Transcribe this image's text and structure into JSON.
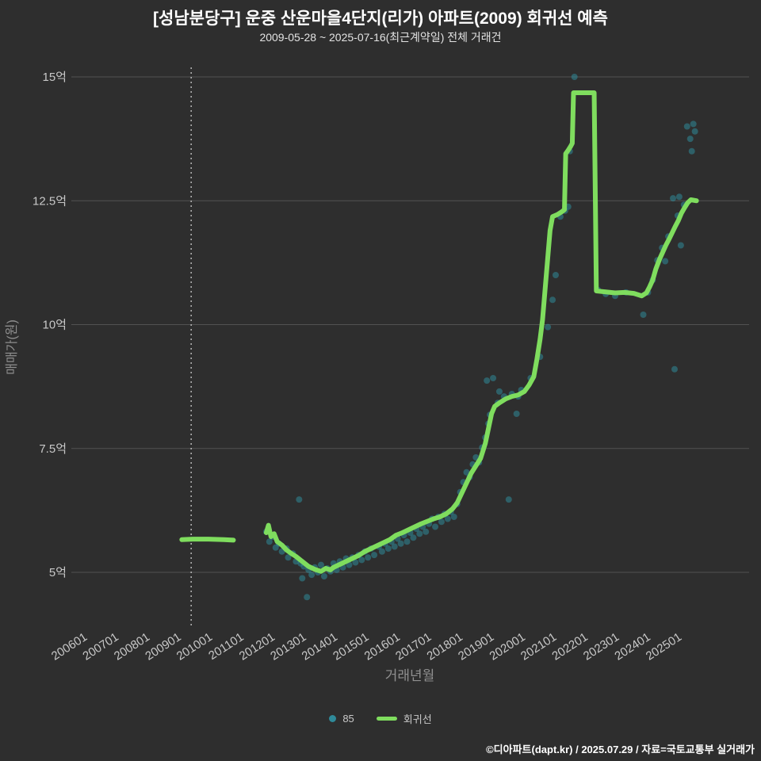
{
  "page": {
    "title": "[성남분당구] 운중 산운마을4단지(리가) 아파트(2009) 회귀선 예측",
    "subtitle": "2009-05-28 ~ 2025-07-16(최근계약일) 전체 거래건",
    "footer": "©디아파트(dapt.kr) / 2025.07.29 / 자료=국토교통부 실거래가"
  },
  "colors": {
    "background": "#2e2e2e",
    "grid": "#525252",
    "scatter": "#2f8a99",
    "line": "#7fdd5e",
    "tick": "#c8c8c8",
    "axis_title": "#8f8f8f",
    "vline": "#c0c0c0",
    "title": "#ffffff",
    "subtitle": "#e3e3e3"
  },
  "chart_data": {
    "type": "scatter",
    "title": "[성남분당구] 운중 산운마을4단지(리가) 아파트(2009) 회귀선 예측",
    "subtitle": "2009-05-28 ~ 2025-07-16(최근계약일) 전체 거래건",
    "xlabel": "거래년월",
    "ylabel": "매매가(원)",
    "x_unit": "decimal_year",
    "y_unit": "억원",
    "xlim": [
      2005.6,
      2027.3
    ],
    "ylim": [
      3.9,
      15.2
    ],
    "grid": "horizontal",
    "legend_position": "bottom-center",
    "vline_x": 2009.45,
    "x_ticks": [
      {
        "t": 2006,
        "label": "200601"
      },
      {
        "t": 2007,
        "label": "200701"
      },
      {
        "t": 2008,
        "label": "200801"
      },
      {
        "t": 2009,
        "label": "200901"
      },
      {
        "t": 2010,
        "label": "201001"
      },
      {
        "t": 2011,
        "label": "201101"
      },
      {
        "t": 2012,
        "label": "201201"
      },
      {
        "t": 2013,
        "label": "201301"
      },
      {
        "t": 2014,
        "label": "201401"
      },
      {
        "t": 2015,
        "label": "201501"
      },
      {
        "t": 2016,
        "label": "201601"
      },
      {
        "t": 2017,
        "label": "201701"
      },
      {
        "t": 2018,
        "label": "201801"
      },
      {
        "t": 2019,
        "label": "201901"
      },
      {
        "t": 2020,
        "label": "202001"
      },
      {
        "t": 2021,
        "label": "202101"
      },
      {
        "t": 2022,
        "label": "202201"
      },
      {
        "t": 2023,
        "label": "202301"
      },
      {
        "t": 2024,
        "label": "202401"
      },
      {
        "t": 2025,
        "label": "202501"
      }
    ],
    "y_ticks": [
      {
        "v": 5,
        "label": "5억"
      },
      {
        "v": 7.5,
        "label": "7.5억"
      },
      {
        "v": 10,
        "label": "10억"
      },
      {
        "v": 12.5,
        "label": "12.5억"
      },
      {
        "v": 15,
        "label": "15억"
      }
    ],
    "legend": [
      {
        "label": "85",
        "type": "point"
      },
      {
        "label": "회귀선",
        "type": "line"
      }
    ],
    "series": [
      {
        "name": "85",
        "type": "scatter",
        "points": [
          [
            2011.85,
            5.82
          ],
          [
            2011.95,
            5.62
          ],
          [
            2012.05,
            5.72
          ],
          [
            2012.15,
            5.5
          ],
          [
            2012.25,
            5.58
          ],
          [
            2012.35,
            5.42
          ],
          [
            2012.5,
            5.48
          ],
          [
            2012.55,
            5.3
          ],
          [
            2012.7,
            5.38
          ],
          [
            2012.8,
            5.22
          ],
          [
            2012.9,
            6.47
          ],
          [
            2012.95,
            5.18
          ],
          [
            2013.0,
            4.88
          ],
          [
            2013.05,
            5.12
          ],
          [
            2013.15,
            4.5
          ],
          [
            2013.2,
            5.05
          ],
          [
            2013.3,
            4.95
          ],
          [
            2013.4,
            5.1
          ],
          [
            2013.5,
            5.0
          ],
          [
            2013.6,
            5.15
          ],
          [
            2013.7,
            4.92
          ],
          [
            2013.8,
            5.08
          ],
          [
            2013.9,
            5.02
          ],
          [
            2014.0,
            5.18
          ],
          [
            2014.1,
            5.05
          ],
          [
            2014.2,
            5.22
          ],
          [
            2014.3,
            5.1
          ],
          [
            2014.4,
            5.28
          ],
          [
            2014.5,
            5.15
          ],
          [
            2014.6,
            5.3
          ],
          [
            2014.7,
            5.2
          ],
          [
            2014.8,
            5.35
          ],
          [
            2014.9,
            5.25
          ],
          [
            2015.0,
            5.42
          ],
          [
            2015.1,
            5.3
          ],
          [
            2015.2,
            5.48
          ],
          [
            2015.3,
            5.35
          ],
          [
            2015.45,
            5.52
          ],
          [
            2015.55,
            5.42
          ],
          [
            2015.65,
            5.58
          ],
          [
            2015.75,
            5.48
          ],
          [
            2015.85,
            5.62
          ],
          [
            2015.95,
            5.52
          ],
          [
            2016.05,
            5.68
          ],
          [
            2016.15,
            5.58
          ],
          [
            2016.25,
            5.75
          ],
          [
            2016.35,
            5.62
          ],
          [
            2016.45,
            5.8
          ],
          [
            2016.55,
            5.7
          ],
          [
            2016.65,
            5.88
          ],
          [
            2016.75,
            5.78
          ],
          [
            2016.85,
            5.92
          ],
          [
            2016.95,
            5.82
          ],
          [
            2017.05,
            5.98
          ],
          [
            2017.15,
            6.08
          ],
          [
            2017.25,
            5.92
          ],
          [
            2017.35,
            6.12
          ],
          [
            2017.45,
            6.02
          ],
          [
            2017.55,
            6.18
          ],
          [
            2017.65,
            6.08
          ],
          [
            2017.75,
            6.22
          ],
          [
            2017.85,
            6.12
          ],
          [
            2017.95,
            6.38
          ],
          [
            2018.05,
            6.62
          ],
          [
            2018.15,
            6.82
          ],
          [
            2018.25,
            7.02
          ],
          [
            2018.35,
            6.92
          ],
          [
            2018.45,
            7.18
          ],
          [
            2018.55,
            7.32
          ],
          [
            2018.65,
            7.22
          ],
          [
            2018.75,
            7.52
          ],
          [
            2018.85,
            7.72
          ],
          [
            2018.9,
            8.87
          ],
          [
            2018.95,
            8.0
          ],
          [
            2019.0,
            8.18
          ],
          [
            2019.1,
            8.92
          ],
          [
            2019.25,
            8.42
          ],
          [
            2019.3,
            8.65
          ],
          [
            2019.45,
            8.55
          ],
          [
            2019.6,
            6.47
          ],
          [
            2019.7,
            8.6
          ],
          [
            2019.85,
            8.2
          ],
          [
            2019.9,
            8.55
          ],
          [
            2020.0,
            8.68
          ],
          [
            2020.3,
            8.92
          ],
          [
            2020.6,
            9.35
          ],
          [
            2020.85,
            9.95
          ],
          [
            2021.0,
            10.5
          ],
          [
            2021.1,
            11.0
          ],
          [
            2021.25,
            12.18
          ],
          [
            2021.4,
            12.3
          ],
          [
            2021.5,
            12.38
          ],
          [
            2021.55,
            13.5
          ],
          [
            2021.7,
            15.0
          ],
          [
            2022.45,
            10.7
          ],
          [
            2022.7,
            10.62
          ],
          [
            2023.0,
            10.58
          ],
          [
            2023.35,
            10.65
          ],
          [
            2023.9,
            10.2
          ],
          [
            2024.05,
            10.65
          ],
          [
            2024.2,
            10.9
          ],
          [
            2024.35,
            11.3
          ],
          [
            2024.5,
            11.55
          ],
          [
            2024.6,
            11.28
          ],
          [
            2024.7,
            11.78
          ],
          [
            2024.85,
            12.55
          ],
          [
            2024.9,
            9.1
          ],
          [
            2025.0,
            12.2
          ],
          [
            2025.05,
            12.58
          ],
          [
            2025.1,
            11.6
          ],
          [
            2025.2,
            12.42
          ],
          [
            2025.3,
            14.0
          ],
          [
            2025.4,
            13.75
          ],
          [
            2025.5,
            14.05
          ],
          [
            2025.45,
            13.5
          ],
          [
            2025.55,
            13.9
          ]
        ]
      },
      {
        "name": "회귀선",
        "type": "line",
        "segments": [
          [
            [
              2009.15,
              5.66
            ],
            [
              2009.5,
              5.67
            ],
            [
              2010.0,
              5.67
            ],
            [
              2010.5,
              5.66
            ],
            [
              2010.8,
              5.65
            ]
          ],
          [
            [
              2011.85,
              5.8
            ],
            [
              2011.92,
              5.95
            ],
            [
              2012.0,
              5.72
            ],
            [
              2012.1,
              5.78
            ],
            [
              2012.2,
              5.62
            ],
            [
              2012.35,
              5.55
            ],
            [
              2012.5,
              5.45
            ],
            [
              2012.65,
              5.38
            ],
            [
              2012.8,
              5.32
            ],
            [
              2013.0,
              5.22
            ],
            [
              2013.2,
              5.12
            ],
            [
              2013.4,
              5.06
            ],
            [
              2013.6,
              5.02
            ],
            [
              2013.75,
              5.08
            ],
            [
              2013.9,
              5.05
            ],
            [
              2014.0,
              5.1
            ],
            [
              2014.2,
              5.16
            ],
            [
              2014.4,
              5.22
            ],
            [
              2014.6,
              5.28
            ],
            [
              2014.8,
              5.34
            ],
            [
              2015.0,
              5.42
            ],
            [
              2015.2,
              5.48
            ],
            [
              2015.4,
              5.54
            ],
            [
              2015.6,
              5.6
            ],
            [
              2015.8,
              5.66
            ],
            [
              2016.0,
              5.75
            ],
            [
              2016.2,
              5.8
            ],
            [
              2016.4,
              5.86
            ],
            [
              2016.6,
              5.92
            ],
            [
              2016.8,
              5.98
            ],
            [
              2017.0,
              6.03
            ],
            [
              2017.2,
              6.08
            ],
            [
              2017.4,
              6.12
            ],
            [
              2017.6,
              6.18
            ],
            [
              2017.8,
              6.28
            ],
            [
              2017.95,
              6.4
            ],
            [
              2018.1,
              6.6
            ],
            [
              2018.25,
              6.8
            ],
            [
              2018.4,
              7.0
            ],
            [
              2018.55,
              7.15
            ],
            [
              2018.7,
              7.3
            ],
            [
              2018.85,
              7.6
            ],
            [
              2018.95,
              7.9
            ],
            [
              2019.05,
              8.2
            ],
            [
              2019.15,
              8.35
            ],
            [
              2019.3,
              8.42
            ],
            [
              2019.5,
              8.5
            ],
            [
              2019.7,
              8.55
            ],
            [
              2019.9,
              8.58
            ],
            [
              2020.1,
              8.65
            ],
            [
              2020.25,
              8.78
            ],
            [
              2020.4,
              8.95
            ],
            [
              2020.5,
              9.3
            ],
            [
              2020.6,
              9.7
            ],
            [
              2020.68,
              10.1
            ],
            [
              2020.76,
              10.7
            ],
            [
              2020.84,
              11.3
            ],
            [
              2020.92,
              11.9
            ],
            [
              2021.0,
              12.18
            ],
            [
              2021.15,
              12.22
            ],
            [
              2021.3,
              12.28
            ],
            [
              2021.38,
              12.32
            ],
            [
              2021.42,
              13.45
            ],
            [
              2021.5,
              13.52
            ],
            [
              2021.58,
              13.6
            ],
            [
              2021.63,
              13.66
            ],
            [
              2021.67,
              14.68
            ],
            [
              2022.33,
              14.68
            ],
            [
              2022.4,
              10.68
            ],
            [
              2022.7,
              10.66
            ],
            [
              2023.0,
              10.64
            ],
            [
              2023.3,
              10.65
            ],
            [
              2023.6,
              10.63
            ],
            [
              2023.85,
              10.58
            ],
            [
              2024.0,
              10.64
            ],
            [
              2024.1,
              10.76
            ],
            [
              2024.2,
              10.9
            ],
            [
              2024.3,
              11.12
            ],
            [
              2024.42,
              11.32
            ],
            [
              2024.52,
              11.46
            ],
            [
              2024.62,
              11.6
            ],
            [
              2024.72,
              11.72
            ],
            [
              2024.82,
              11.85
            ],
            [
              2024.92,
              11.98
            ],
            [
              2025.02,
              12.1
            ],
            [
              2025.12,
              12.25
            ],
            [
              2025.22,
              12.36
            ],
            [
              2025.32,
              12.46
            ],
            [
              2025.42,
              12.52
            ],
            [
              2025.6,
              12.5
            ]
          ]
        ]
      }
    ]
  }
}
